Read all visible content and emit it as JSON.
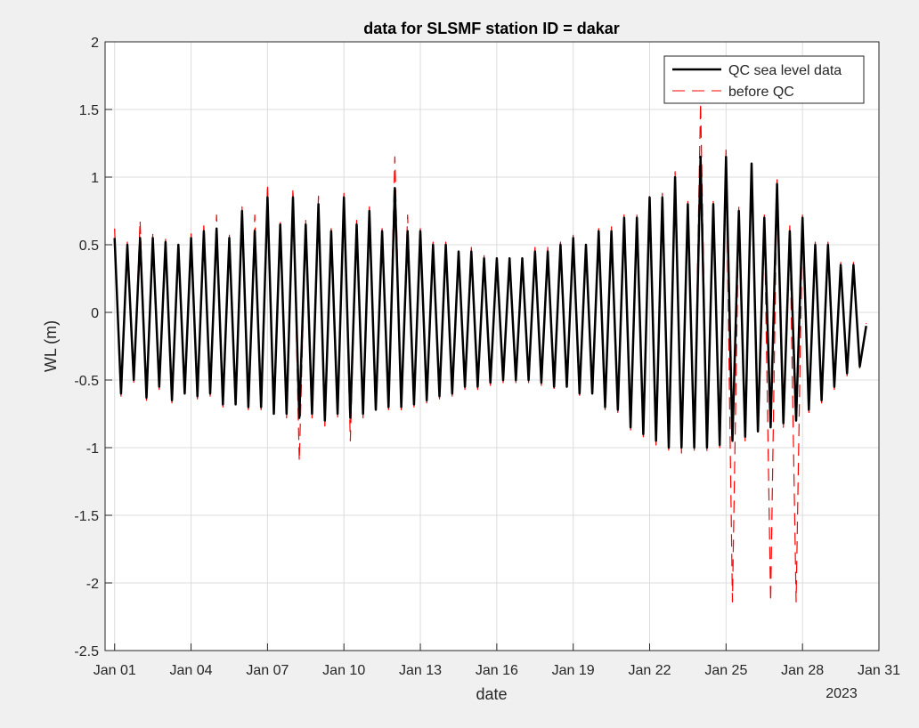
{
  "chart_data": {
    "type": "line",
    "title": "data for SLSMF station ID = dakar",
    "xlabel": "date",
    "ylabel": "WL (m)",
    "xlim": [
      "2022-12-31T15:00",
      "2023-01-31T00:00"
    ],
    "ylim": [
      -2.5,
      2
    ],
    "x_ticks": [
      "2023-01-01",
      "2023-01-04",
      "2023-01-07",
      "2023-01-10",
      "2023-01-13",
      "2023-01-16",
      "2023-01-19",
      "2023-01-22",
      "2023-01-25",
      "2023-01-28",
      "2023-01-31"
    ],
    "x_tick_labels": [
      "Jan 01",
      "Jan 04",
      "Jan 07",
      "Jan 10",
      "Jan 13",
      "Jan 16",
      "Jan 19",
      "Jan 22",
      "Jan 25",
      "Jan 28",
      "Jan 31"
    ],
    "x_year_label": "2023",
    "y_ticks": [
      2,
      1.5,
      1,
      0.5,
      0,
      -0.5,
      -1,
      -1.5,
      -2,
      -2.5
    ],
    "y_tick_labels": [
      "2",
      "1.5",
      "1",
      "0.5",
      "0",
      "-0.5",
      "-1",
      "-1.5",
      "-2",
      "-2.5"
    ],
    "grid": true,
    "legend_position": "top-right",
    "series": [
      {
        "name": "QC sea level data",
        "color": "#000000",
        "style": "solid",
        "x": [
          "2023-01-01T00:00",
          "2023-01-01T06:00",
          "2023-01-01T12:00",
          "2023-01-01T18:00",
          "2023-01-02T00:00",
          "2023-01-02T06:00",
          "2023-01-02T12:00",
          "2023-01-02T18:00",
          "2023-01-03T00:00",
          "2023-01-03T06:00",
          "2023-01-03T12:00",
          "2023-01-03T18:00",
          "2023-01-04T00:00",
          "2023-01-04T06:00",
          "2023-01-04T12:00",
          "2023-01-04T18:00",
          "2023-01-05T00:00",
          "2023-01-05T06:00",
          "2023-01-05T12:00",
          "2023-01-05T18:00",
          "2023-01-06T00:00",
          "2023-01-06T06:00",
          "2023-01-06T12:00",
          "2023-01-06T18:00",
          "2023-01-07T00:00",
          "2023-01-07T06:00",
          "2023-01-07T12:00",
          "2023-01-07T18:00",
          "2023-01-08T00:00",
          "2023-01-08T06:00",
          "2023-01-08T12:00",
          "2023-01-08T18:00",
          "2023-01-09T00:00",
          "2023-01-09T06:00",
          "2023-01-09T12:00",
          "2023-01-09T18:00",
          "2023-01-10T00:00",
          "2023-01-10T06:00",
          "2023-01-10T12:00",
          "2023-01-10T18:00",
          "2023-01-11T00:00",
          "2023-01-11T06:00",
          "2023-01-11T12:00",
          "2023-01-11T18:00",
          "2023-01-12T00:00",
          "2023-01-12T06:00",
          "2023-01-12T12:00",
          "2023-01-12T18:00",
          "2023-01-13T00:00",
          "2023-01-13T06:00",
          "2023-01-13T12:00",
          "2023-01-13T18:00",
          "2023-01-14T00:00",
          "2023-01-14T06:00",
          "2023-01-14T12:00",
          "2023-01-14T18:00",
          "2023-01-15T00:00",
          "2023-01-15T06:00",
          "2023-01-15T12:00",
          "2023-01-15T18:00",
          "2023-01-16T00:00",
          "2023-01-16T06:00",
          "2023-01-16T12:00",
          "2023-01-16T18:00",
          "2023-01-17T00:00",
          "2023-01-17T06:00",
          "2023-01-17T12:00",
          "2023-01-17T18:00",
          "2023-01-18T00:00",
          "2023-01-18T06:00",
          "2023-01-18T12:00",
          "2023-01-18T18:00",
          "2023-01-19T00:00",
          "2023-01-19T06:00",
          "2023-01-19T12:00",
          "2023-01-19T18:00",
          "2023-01-20T00:00",
          "2023-01-20T06:00",
          "2023-01-20T12:00",
          "2023-01-20T18:00",
          "2023-01-21T00:00",
          "2023-01-21T06:00",
          "2023-01-21T12:00",
          "2023-01-21T18:00",
          "2023-01-22T00:00",
          "2023-01-22T06:00",
          "2023-01-22T12:00",
          "2023-01-22T18:00",
          "2023-01-23T00:00",
          "2023-01-23T06:00",
          "2023-01-23T12:00",
          "2023-01-23T18:00",
          "2023-01-24T00:00",
          "2023-01-24T06:00",
          "2023-01-24T12:00",
          "2023-01-24T18:00",
          "2023-01-25T00:00",
          "2023-01-25T06:00",
          "2023-01-25T12:00",
          "2023-01-25T18:00",
          "2023-01-26T00:00",
          "2023-01-26T06:00",
          "2023-01-26T12:00",
          "2023-01-26T18:00",
          "2023-01-27T00:00",
          "2023-01-27T06:00",
          "2023-01-27T12:00",
          "2023-01-27T18:00",
          "2023-01-28T00:00",
          "2023-01-28T06:00",
          "2023-01-28T12:00",
          "2023-01-28T18:00",
          "2023-01-29T00:00",
          "2023-01-29T06:00",
          "2023-01-29T12:00",
          "2023-01-29T18:00",
          "2023-01-30T00:00",
          "2023-01-30T06:00",
          "2023-01-30T12:00"
        ],
        "y": [
          0.55,
          -0.6,
          0.5,
          -0.5,
          0.55,
          -0.63,
          0.55,
          -0.55,
          0.52,
          -0.65,
          0.5,
          -0.6,
          0.55,
          -0.62,
          0.6,
          -0.6,
          0.62,
          -0.68,
          0.55,
          -0.68,
          0.75,
          -0.7,
          0.6,
          -0.7,
          0.85,
          -0.75,
          0.65,
          -0.75,
          0.85,
          -0.78,
          0.65,
          -0.75,
          0.8,
          -0.8,
          0.6,
          -0.75,
          0.85,
          -0.78,
          0.65,
          -0.75,
          0.75,
          -0.72,
          0.6,
          -0.7,
          0.92,
          -0.7,
          0.6,
          -0.68,
          0.6,
          -0.65,
          0.5,
          -0.62,
          0.5,
          -0.6,
          0.45,
          -0.55,
          0.45,
          -0.55,
          0.4,
          -0.52,
          0.4,
          -0.5,
          0.4,
          -0.5,
          0.4,
          -0.5,
          0.45,
          -0.52,
          0.45,
          -0.55,
          0.5,
          -0.55,
          0.55,
          -0.6,
          0.5,
          -0.6,
          0.6,
          -0.7,
          0.6,
          -0.72,
          0.7,
          -0.85,
          0.7,
          -0.9,
          0.85,
          -0.95,
          0.85,
          -1.0,
          1.0,
          -1.0,
          0.8,
          -1.0,
          1.15,
          -1.0,
          0.8,
          -0.98,
          1.15,
          -0.95,
          0.75,
          -0.92,
          1.1,
          -0.88,
          0.7,
          -0.85,
          0.95,
          -0.82,
          0.6,
          -0.8,
          0.7,
          -0.72,
          0.5,
          -0.65,
          0.5,
          -0.55,
          0.35,
          -0.45,
          0.35,
          -0.4,
          -0.1
        ]
      },
      {
        "name": "before QC",
        "color": "#ff0000",
        "style": "dashed",
        "x": [
          "2023-01-01T00:00",
          "2023-01-01T06:00",
          "2023-01-01T12:00",
          "2023-01-01T18:00",
          "2023-01-02T00:00",
          "2023-01-02T06:00",
          "2023-01-02T12:00",
          "2023-01-02T18:00",
          "2023-01-03T00:00",
          "2023-01-03T06:00",
          "2023-01-03T12:00",
          "2023-01-03T18:00",
          "2023-01-04T00:00",
          "2023-01-04T06:00",
          "2023-01-04T12:00",
          "2023-01-04T18:00",
          "2023-01-05T00:00",
          "2023-01-05T06:00",
          "2023-01-05T12:00",
          "2023-01-05T18:00",
          "2023-01-06T00:00",
          "2023-01-06T06:00",
          "2023-01-06T12:00",
          "2023-01-06T18:00",
          "2023-01-07T00:00",
          "2023-01-07T06:00",
          "2023-01-07T12:00",
          "2023-01-07T18:00",
          "2023-01-08T00:00",
          "2023-01-08T06:00",
          "2023-01-08T12:00",
          "2023-01-08T18:00",
          "2023-01-09T00:00",
          "2023-01-09T06:00",
          "2023-01-09T12:00",
          "2023-01-09T18:00",
          "2023-01-10T00:00",
          "2023-01-10T06:00",
          "2023-01-10T12:00",
          "2023-01-10T18:00",
          "2023-01-11T00:00",
          "2023-01-11T06:00",
          "2023-01-11T12:00",
          "2023-01-11T18:00",
          "2023-01-12T00:00",
          "2023-01-12T06:00",
          "2023-01-12T12:00",
          "2023-01-12T18:00",
          "2023-01-13T00:00",
          "2023-01-13T06:00",
          "2023-01-13T12:00",
          "2023-01-13T18:00",
          "2023-01-14T00:00",
          "2023-01-14T06:00",
          "2023-01-14T12:00",
          "2023-01-14T18:00",
          "2023-01-15T00:00",
          "2023-01-15T06:00",
          "2023-01-15T12:00",
          "2023-01-15T18:00",
          "2023-01-16T00:00",
          "2023-01-16T06:00",
          "2023-01-16T12:00",
          "2023-01-16T18:00",
          "2023-01-17T00:00",
          "2023-01-17T06:00",
          "2023-01-17T12:00",
          "2023-01-17T18:00",
          "2023-01-18T00:00",
          "2023-01-18T06:00",
          "2023-01-18T12:00",
          "2023-01-18T18:00",
          "2023-01-19T00:00",
          "2023-01-19T06:00",
          "2023-01-19T12:00",
          "2023-01-19T18:00",
          "2023-01-20T00:00",
          "2023-01-20T06:00",
          "2023-01-20T12:00",
          "2023-01-20T18:00",
          "2023-01-21T00:00",
          "2023-01-21T06:00",
          "2023-01-21T12:00",
          "2023-01-21T18:00",
          "2023-01-22T00:00",
          "2023-01-22T06:00",
          "2023-01-22T12:00",
          "2023-01-22T18:00",
          "2023-01-23T00:00",
          "2023-01-23T06:00",
          "2023-01-23T12:00",
          "2023-01-23T18:00",
          "2023-01-24T00:00",
          "2023-01-24T06:00",
          "2023-01-24T12:00",
          "2023-01-24T18:00",
          "2023-01-25T00:00",
          "2023-01-25T06:00",
          "2023-01-25T12:00",
          "2023-01-25T18:00",
          "2023-01-26T00:00",
          "2023-01-26T06:00",
          "2023-01-26T12:00",
          "2023-01-26T18:00",
          "2023-01-27T00:00",
          "2023-01-27T06:00",
          "2023-01-27T12:00",
          "2023-01-27T18:00",
          "2023-01-28T00:00",
          "2023-01-28T06:00",
          "2023-01-28T12:00",
          "2023-01-28T18:00",
          "2023-01-29T00:00",
          "2023-01-29T06:00",
          "2023-01-29T12:00",
          "2023-01-29T18:00",
          "2023-01-30T00:00",
          "2023-01-30T06:00",
          "2023-01-30T12:00"
        ],
        "y": [
          0.62,
          -0.62,
          0.52,
          -0.52,
          0.68,
          -0.65,
          0.58,
          -0.57,
          0.54,
          -0.67,
          0.52,
          -0.62,
          0.58,
          -0.64,
          0.64,
          -0.62,
          0.72,
          -0.7,
          0.58,
          -0.7,
          0.78,
          -0.72,
          0.72,
          -0.72,
          0.95,
          -0.78,
          0.68,
          -0.78,
          0.92,
          -1.1,
          0.68,
          -0.78,
          0.86,
          -0.84,
          0.62,
          -0.78,
          0.88,
          -0.95,
          0.68,
          -0.78,
          0.78,
          -0.74,
          0.62,
          -0.72,
          1.15,
          -0.72,
          0.72,
          -0.7,
          0.62,
          -0.67,
          0.52,
          -0.64,
          0.52,
          -0.62,
          0.48,
          -0.57,
          0.48,
          -0.57,
          0.42,
          -0.54,
          0.42,
          -0.52,
          0.42,
          -0.52,
          0.43,
          -0.52,
          0.48,
          -0.54,
          0.48,
          -0.57,
          0.52,
          -0.57,
          0.58,
          -0.62,
          0.52,
          -0.62,
          0.62,
          -0.72,
          0.64,
          -0.74,
          0.74,
          -0.88,
          0.72,
          -0.92,
          0.88,
          -0.98,
          0.88,
          -1.04,
          1.04,
          -1.04,
          0.82,
          -1.02,
          1.55,
          -1.04,
          0.82,
          -1.0,
          1.2,
          -2.14,
          0.78,
          -0.95,
          1.12,
          -0.9,
          0.72,
          -2.14,
          0.98,
          -0.85,
          0.64,
          -2.14,
          0.72,
          -0.74,
          0.52,
          -0.67,
          0.52,
          -0.57,
          0.37,
          -0.47,
          0.37,
          -0.42,
          -0.08
        ]
      }
    ]
  }
}
